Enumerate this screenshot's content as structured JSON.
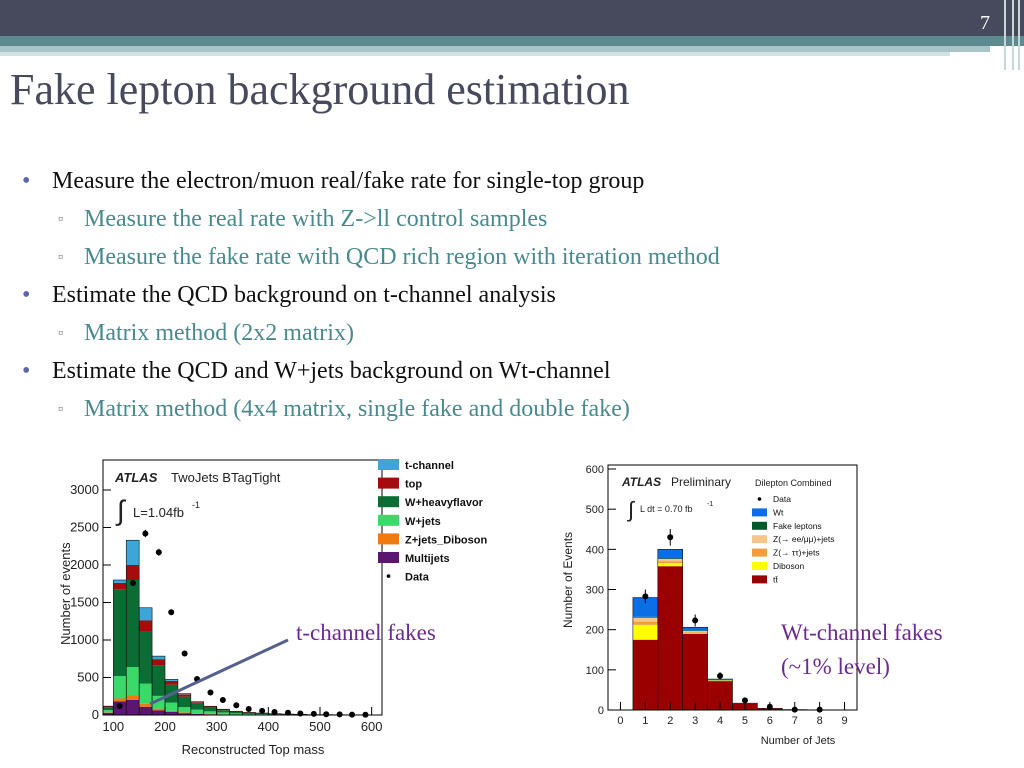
{
  "slide": {
    "number": "7",
    "title": "Fake lepton background estimation",
    "bullets": [
      {
        "text": "Measure the electron/muon real/fake rate for single-top group",
        "sub": [
          "Measure the real rate with Z->ll control samples",
          "Measure the fake rate with QCD rich region with iteration method"
        ]
      },
      {
        "text": "Estimate the QCD background on t-channel analysis",
        "sub": [
          "Matrix method (2x2 matrix)"
        ]
      },
      {
        "text": "Estimate the QCD and W+jets background on Wt-channel",
        "sub": [
          "Matrix method (4x4 matrix, single fake and double fake)"
        ]
      }
    ],
    "annotations": {
      "tchannel": "t-channel fakes",
      "wt_line1": "Wt-channel fakes",
      "wt_line2": "(~1% level)"
    },
    "colors": {
      "accent": "#474a5c",
      "teal": "#4a8a8e",
      "purple": "#6b2a8f"
    }
  },
  "chart_data": [
    {
      "type": "bar",
      "stacked": true,
      "atlas": "ATLAS",
      "label": "TwoJets BTagTight",
      "lumi_prefix": "L=1.04fb",
      "lumi_sup": "-1",
      "xlabel": "Reconstructed Top mass",
      "ylabel": "Number of events",
      "xlim": [
        80,
        620
      ],
      "ylim": [
        0,
        3400
      ],
      "xticks": [
        100,
        200,
        300,
        400,
        500,
        600
      ],
      "yticks": [
        0,
        500,
        1000,
        1500,
        2000,
        2500,
        3000
      ],
      "ytick_labels": [
        "0",
        "500",
        "1000",
        "1500",
        "2000",
        "2500",
        "3000"
      ],
      "bin_edges": [
        80,
        100,
        125,
        150,
        175,
        200,
        225,
        250,
        275,
        300,
        325,
        350,
        375,
        400,
        425,
        450,
        475,
        500,
        525,
        550,
        575,
        600
      ],
      "series": [
        {
          "name": "Multijets",
          "color": "#5b1673",
          "values": [
            30,
            180,
            200,
            110,
            60,
            40,
            25,
            15,
            10,
            6,
            4,
            3,
            2,
            1,
            1,
            0,
            0,
            0,
            0,
            0,
            0
          ]
        },
        {
          "name": "Z+jets_Diboson",
          "color": "#f07a10",
          "values": [
            5,
            40,
            60,
            40,
            25,
            15,
            10,
            6,
            4,
            3,
            2,
            1,
            1,
            1,
            0,
            0,
            0,
            0,
            0,
            0,
            0
          ]
        },
        {
          "name": "W+jets",
          "color": "#3ad96a",
          "values": [
            30,
            300,
            380,
            270,
            170,
            110,
            70,
            50,
            35,
            25,
            15,
            10,
            8,
            6,
            4,
            3,
            2,
            2,
            1,
            1,
            1
          ]
        },
        {
          "name": "W+heavyflavor",
          "color": "#0a6e34",
          "values": [
            40,
            1150,
            1160,
            700,
            410,
            240,
            140,
            80,
            50,
            30,
            20,
            14,
            10,
            7,
            5,
            3,
            2,
            2,
            1,
            1,
            1
          ]
        },
        {
          "name": "top",
          "color": "#a50d0d",
          "values": [
            10,
            90,
            200,
            140,
            80,
            50,
            30,
            20,
            14,
            10,
            7,
            5,
            4,
            3,
            2,
            2,
            1,
            1,
            1,
            1,
            0
          ]
        },
        {
          "name": "t-channel",
          "color": "#3ea5d8",
          "values": [
            3,
            40,
            330,
            170,
            40,
            20,
            10,
            6,
            4,
            3,
            2,
            2,
            1,
            1,
            1,
            1,
            0,
            0,
            0,
            0,
            0
          ]
        }
      ],
      "data_points": [
        {
          "x": 112,
          "y": 120
        },
        {
          "x": 138,
          "y": 1760
        },
        {
          "x": 162,
          "y": 2420
        },
        {
          "x": 188,
          "y": 2170
        },
        {
          "x": 212,
          "y": 1370
        },
        {
          "x": 238,
          "y": 820
        },
        {
          "x": 262,
          "y": 480
        },
        {
          "x": 288,
          "y": 300
        },
        {
          "x": 312,
          "y": 200
        },
        {
          "x": 338,
          "y": 130
        },
        {
          "x": 362,
          "y": 80
        },
        {
          "x": 388,
          "y": 55
        },
        {
          "x": 412,
          "y": 40
        },
        {
          "x": 438,
          "y": 30
        },
        {
          "x": 462,
          "y": 20
        },
        {
          "x": 488,
          "y": 15
        },
        {
          "x": 512,
          "y": 10
        },
        {
          "x": 538,
          "y": 8
        },
        {
          "x": 562,
          "y": 5
        },
        {
          "x": 588,
          "y": 4
        }
      ],
      "legend": [
        {
          "name": "t-channel",
          "color": "#3ea5d8",
          "kind": "box"
        },
        {
          "name": "top",
          "color": "#a50d0d",
          "kind": "box"
        },
        {
          "name": "W+heavyflavor",
          "color": "#0a6e34",
          "kind": "box"
        },
        {
          "name": "W+jets",
          "color": "#3ad96a",
          "kind": "box"
        },
        {
          "name": "Z+jets_Diboson",
          "color": "#f07a10",
          "kind": "box"
        },
        {
          "name": "Multijets",
          "color": "#5b1673",
          "kind": "box"
        },
        {
          "name": "Data",
          "color": "#000000",
          "kind": "dot"
        }
      ]
    },
    {
      "type": "bar",
      "stacked": true,
      "atlas": "ATLAS",
      "label": "Preliminary",
      "channel": "Dilepton Combined",
      "lumi_text": "L dt = 0.70 fb",
      "lumi_sup": "-1",
      "xlabel": "Number of Jets",
      "ylabel": "Number of Events",
      "xlim": [
        -0.5,
        9.5
      ],
      "ylim": [
        0,
        610
      ],
      "xticks": [
        0,
        1,
        2,
        3,
        4,
        5,
        6,
        7,
        8,
        9
      ],
      "yticks": [
        0,
        100,
        200,
        300,
        400,
        500,
        600
      ],
      "ytick_labels": [
        "0",
        "100",
        "200",
        "300",
        "400",
        "500",
        "600"
      ],
      "bin_edges": [
        0.5,
        1.5,
        2.5,
        3.5,
        4.5,
        5.5,
        6.5,
        7.5,
        8.5
      ],
      "series": [
        {
          "name": "tt̄",
          "color": "#9b0000",
          "values": [
            175,
            358,
            190,
            72,
            16,
            4,
            1,
            0
          ]
        },
        {
          "name": "Diboson",
          "color": "#ffff00",
          "values": [
            37,
            8,
            2,
            1,
            0,
            0,
            0,
            0
          ]
        },
        {
          "name": "Z(→ ττ)+jets",
          "color": "#f39c3c",
          "values": [
            8,
            4,
            2,
            0,
            0,
            0,
            0,
            0
          ]
        },
        {
          "name": "Z(→ ee/μμ)+jets",
          "color": "#f7c58a",
          "values": [
            10,
            6,
            3,
            1,
            0,
            0,
            0,
            0
          ]
        },
        {
          "name": "Fake leptons",
          "color": "#005a2e",
          "values": [
            2,
            2,
            1,
            1,
            0,
            0,
            0,
            0
          ]
        },
        {
          "name": "Wt",
          "color": "#0a6ee6",
          "values": [
            48,
            22,
            8,
            2,
            1,
            0,
            0,
            0
          ]
        }
      ],
      "data_points": [
        {
          "x": 1,
          "y": 283
        },
        {
          "x": 2,
          "y": 430
        },
        {
          "x": 3,
          "y": 223
        },
        {
          "x": 4,
          "y": 85
        },
        {
          "x": 5,
          "y": 24
        },
        {
          "x": 6,
          "y": 8
        },
        {
          "x": 7,
          "y": 1
        },
        {
          "x": 8,
          "y": 1
        }
      ],
      "legend": [
        {
          "name": "Data",
          "color": "#000000",
          "kind": "dot"
        },
        {
          "name": "Wt",
          "color": "#0a6ee6",
          "kind": "box"
        },
        {
          "name": "Fake leptons",
          "color": "#005a2e",
          "kind": "box"
        },
        {
          "name": "Z(→ ee/μμ)+jets",
          "color": "#f7c58a",
          "kind": "box"
        },
        {
          "name": "Z(→ ττ)+jets",
          "color": "#f39c3c",
          "kind": "box"
        },
        {
          "name": "Diboson",
          "color": "#ffff00",
          "kind": "box"
        },
        {
          "name": "tt̄",
          "color": "#9b0000",
          "kind": "box"
        }
      ]
    }
  ]
}
